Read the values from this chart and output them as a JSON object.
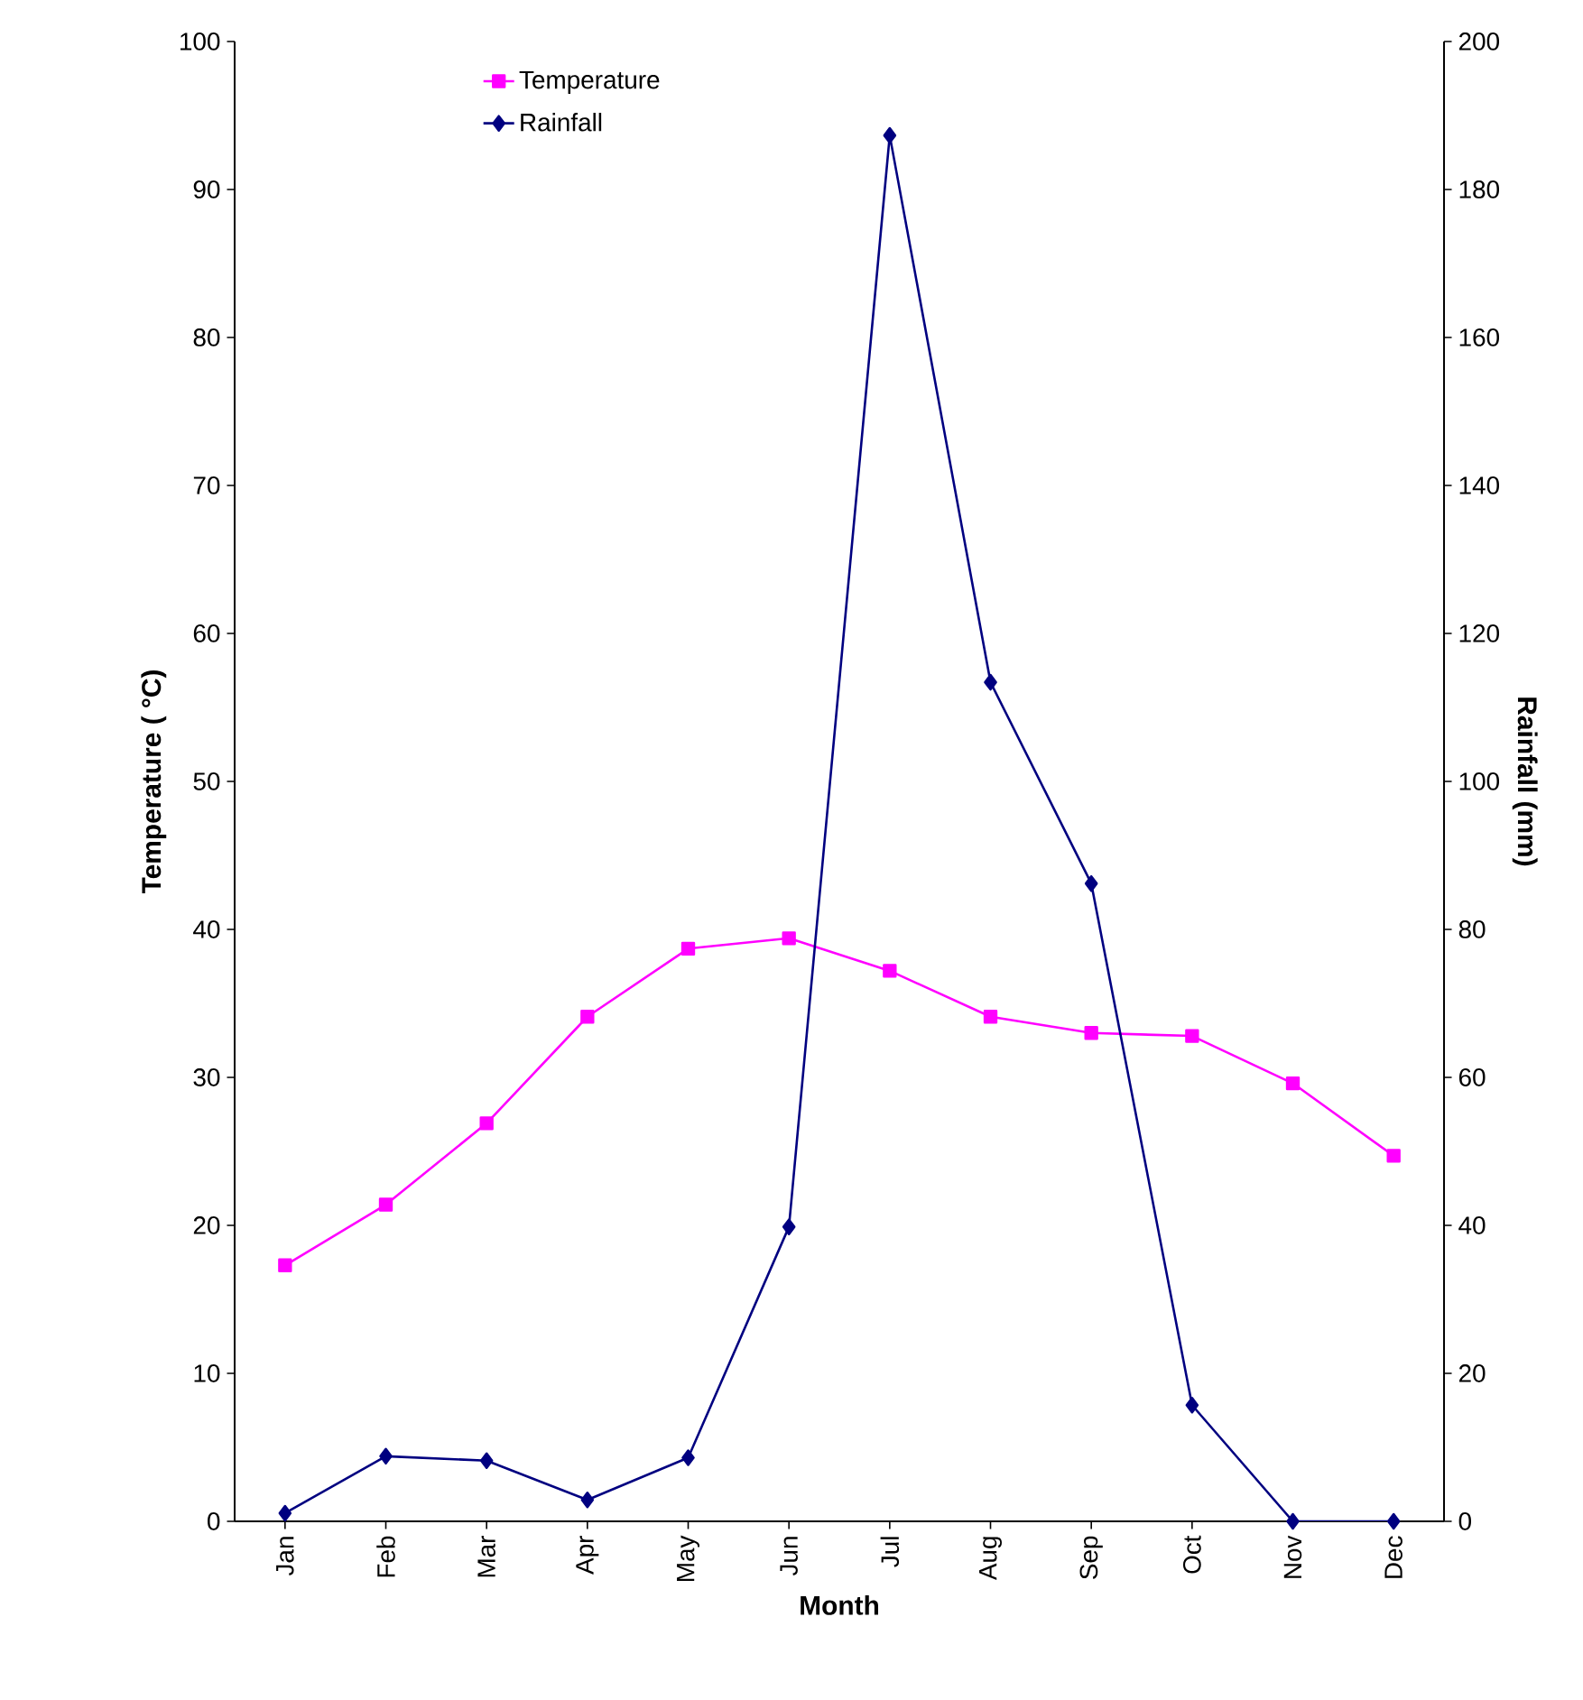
{
  "chart_data": {
    "type": "line",
    "xlabel": "Month",
    "ylabel": "Temperature ( °C)",
    "y2label": "Rainfall (mm)",
    "categories": [
      "Jan",
      "Feb",
      "Mar",
      "Apr",
      "May",
      "Jun",
      "Jul",
      "Aug",
      "Sep",
      "Oct",
      "Nov",
      "Dec"
    ],
    "series": [
      {
        "name": "Temperature",
        "color": "#ff00ff",
        "marker": "square",
        "values": [
          17.3,
          21.4,
          26.9,
          34.1,
          38.7,
          39.4,
          37.2,
          34.1,
          33.0,
          32.8,
          29.6,
          24.7
        ]
      },
      {
        "name": "Rainfall",
        "color": "#000080",
        "marker": "diamond",
        "axis": "y2",
        "values": [
          1.1,
          8.8,
          8.2,
          2.9,
          8.6,
          39.8,
          187.3,
          113.4,
          86.2,
          15.7,
          0,
          0
        ]
      }
    ],
    "ylim": [
      0,
      100
    ],
    "yticks": [
      0,
      10,
      20,
      30,
      40,
      50,
      60,
      70,
      80,
      90,
      100
    ],
    "y2lim": [
      0,
      200
    ],
    "y2ticks": [
      0,
      20,
      40,
      60,
      80,
      100,
      120,
      140,
      160,
      180,
      200
    ],
    "legend": "top left",
    "line_style": "solid"
  }
}
